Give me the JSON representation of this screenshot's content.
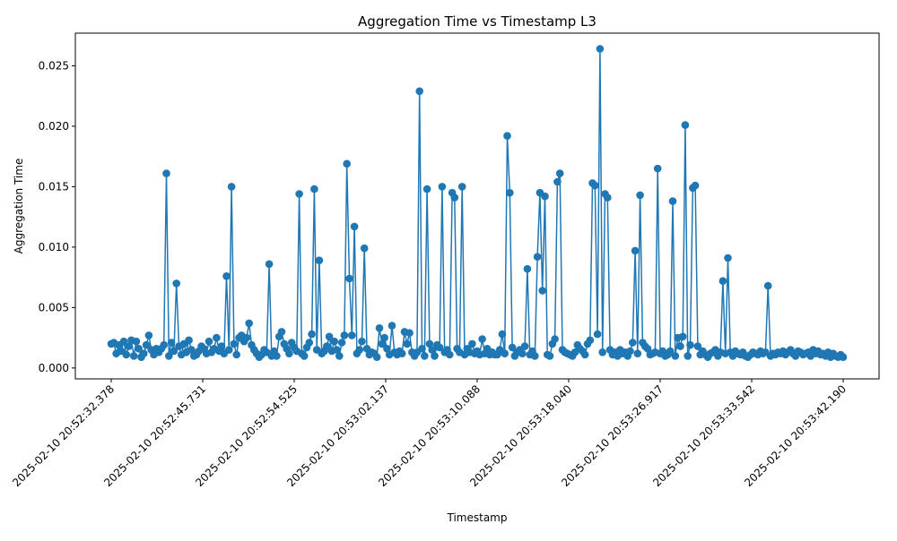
{
  "chart_data": {
    "type": "line",
    "title": "Aggregation Time vs Timestamp L3",
    "xlabel": "Timestamp",
    "ylabel": "Aggregation Time",
    "ylim": [
      -0.0009,
      0.0277
    ],
    "y_ticks": [
      0.0,
      0.005,
      0.01,
      0.015,
      0.02,
      0.025
    ],
    "y_tick_labels": [
      "0.000",
      "0.005",
      "0.010",
      "0.015",
      "0.020",
      "0.025"
    ],
    "x_tick_labels": [
      "2025-02-10 20:52:32.378",
      "2025-02-10 20:52:45.731",
      "2025-02-10 20:52:54.525",
      "2025-02-10 20:53:02.137",
      "2025-02-10 20:53:10.088",
      "2025-02-10 20:53:18.040",
      "2025-02-10 20:53:26.917",
      "2025-02-10 20:53:33.542",
      "2025-02-10 20:53:42.190"
    ],
    "grid": false,
    "marker": "circle",
    "color": "#1f77b4",
    "series": [
      {
        "values": [
          0.002,
          0.0021,
          0.0012,
          0.0019,
          0.0014,
          0.0022,
          0.0011,
          0.0018,
          0.0023,
          0.001,
          0.0022,
          0.0016,
          0.0009,
          0.0012,
          0.0019,
          0.0027,
          0.0015,
          0.0011,
          0.0016,
          0.0013,
          0.0016,
          0.0019,
          0.0161,
          0.001,
          0.0021,
          0.0014,
          0.007,
          0.0018,
          0.0011,
          0.002,
          0.0013,
          0.0023,
          0.0015,
          0.001,
          0.0011,
          0.0014,
          0.0018,
          0.0016,
          0.0012,
          0.0022,
          0.0013,
          0.0016,
          0.0025,
          0.0014,
          0.0018,
          0.0012,
          0.0076,
          0.0015,
          0.015,
          0.002,
          0.0011,
          0.0025,
          0.0027,
          0.0022,
          0.0025,
          0.0037,
          0.0019,
          0.0015,
          0.0012,
          0.0009,
          0.0011,
          0.0015,
          0.0013,
          0.0086,
          0.001,
          0.0014,
          0.001,
          0.0026,
          0.003,
          0.002,
          0.0016,
          0.0012,
          0.0021,
          0.0017,
          0.0014,
          0.0144,
          0.0012,
          0.001,
          0.0017,
          0.0021,
          0.0028,
          0.0148,
          0.0015,
          0.0089,
          0.0012,
          0.0014,
          0.0018,
          0.0026,
          0.0014,
          0.0022,
          0.0015,
          0.001,
          0.0021,
          0.0027,
          0.0169,
          0.0074,
          0.0027,
          0.0117,
          0.0012,
          0.0015,
          0.0022,
          0.0099,
          0.0016,
          0.0011,
          0.0013,
          0.0012,
          0.0009,
          0.0033,
          0.002,
          0.0025,
          0.0016,
          0.0011,
          0.0035,
          0.0013,
          0.0011,
          0.0014,
          0.0012,
          0.003,
          0.002,
          0.0029,
          0.0013,
          0.001,
          0.0013,
          0.0229,
          0.0016,
          0.001,
          0.0148,
          0.002,
          0.0015,
          0.001,
          0.0019,
          0.0017,
          0.015,
          0.0013,
          0.0015,
          0.0011,
          0.0145,
          0.0141,
          0.0016,
          0.0013,
          0.015,
          0.0011,
          0.0016,
          0.0013,
          0.002,
          0.0012,
          0.0014,
          0.0011,
          0.0024,
          0.0012,
          0.0016,
          0.0011,
          0.0013,
          0.0011,
          0.0011,
          0.0015,
          0.0028,
          0.0012,
          0.0192,
          0.0145,
          0.0017,
          0.001,
          0.0013,
          0.0015,
          0.0012,
          0.0018,
          0.0082,
          0.0011,
          0.0014,
          0.001,
          0.0092,
          0.0145,
          0.0064,
          0.0142,
          0.0011,
          0.001,
          0.002,
          0.0024,
          0.0154,
          0.0161,
          0.0015,
          0.0013,
          0.0012,
          0.0011,
          0.001,
          0.0013,
          0.0019,
          0.0016,
          0.0014,
          0.0011,
          0.002,
          0.0023,
          0.0153,
          0.0151,
          0.0028,
          0.0264,
          0.0013,
          0.0144,
          0.0141,
          0.0015,
          0.0011,
          0.0013,
          0.001,
          0.0015,
          0.0012,
          0.0013,
          0.001,
          0.0014,
          0.0021,
          0.0097,
          0.0012,
          0.0143,
          0.0021,
          0.0018,
          0.0016,
          0.0011,
          0.0012,
          0.0013,
          0.0165,
          0.0012,
          0.0014,
          0.001,
          0.0011,
          0.0014,
          0.0138,
          0.001,
          0.0025,
          0.0018,
          0.0026,
          0.0201,
          0.001,
          0.0019,
          0.0149,
          0.0151,
          0.0018,
          0.0011,
          0.0014,
          0.0011,
          0.0009,
          0.0012,
          0.0013,
          0.0015,
          0.001,
          0.0013,
          0.0072,
          0.0012,
          0.0091,
          0.0013,
          0.001,
          0.0014,
          0.0012,
          0.0011,
          0.0013,
          0.001,
          0.0009,
          0.0011,
          0.0013,
          0.0012,
          0.0011,
          0.0014,
          0.0012,
          0.0013,
          0.0068,
          0.001,
          0.0012,
          0.0011,
          0.0013,
          0.0012,
          0.0014,
          0.0011,
          0.0013,
          0.0015,
          0.0012,
          0.001,
          0.0014,
          0.0013,
          0.0011,
          0.0012,
          0.0013,
          0.001,
          0.0015,
          0.0012,
          0.0014,
          0.0011,
          0.0012,
          0.001,
          0.0013,
          0.0009,
          0.0012,
          0.001,
          0.0009,
          0.0011,
          0.0009
        ]
      }
    ]
  }
}
